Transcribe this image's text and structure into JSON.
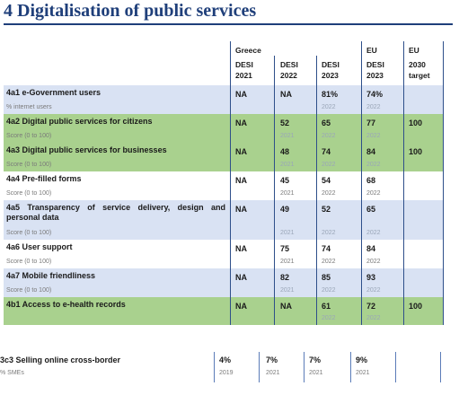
{
  "title": "4 Digitalisation of public services",
  "header": {
    "greece": "Greece",
    "eu": "EU",
    "eu_target": "EU",
    "cols": [
      {
        "l1": "DESI",
        "l2": "2021"
      },
      {
        "l1": "DESI",
        "l2": "2022"
      },
      {
        "l1": "DESI",
        "l2": "2023"
      },
      {
        "l1": "DESI",
        "l2": "2023"
      },
      {
        "l1": "2030",
        "l2": "target"
      }
    ]
  },
  "rows": [
    {
      "label": "4a1 e-Government users",
      "sub": "% internet users",
      "v2021": "NA",
      "v2022": "NA",
      "v2023": "81%",
      "eu2023": "74%",
      "target": "",
      "y2022": "",
      "y2023": "2022",
      "yeu": "2022"
    },
    {
      "label": "4a2 Digital public services for citizens",
      "sub": "Score (0 to 100)",
      "v2021": "NA",
      "v2022": "52",
      "v2023": "65",
      "eu2023": "77",
      "target": "100",
      "y2022": "2021",
      "y2023": "2022",
      "yeu": "2022"
    },
    {
      "label": "4a3 Digital public services for businesses",
      "sub": "Score (0 to 100)",
      "v2021": "NA",
      "v2022": "48",
      "v2023": "74",
      "eu2023": "84",
      "target": "100",
      "y2022": "2021",
      "y2023": "2022",
      "yeu": "2022"
    },
    {
      "label": "4a4 Pre-filled forms",
      "sub": "Score (0 to 100)",
      "v2021": "NA",
      "v2022": "45",
      "v2023": "54",
      "eu2023": "68",
      "target": "",
      "y2022": "2021",
      "y2023": "2022",
      "yeu": "2022"
    },
    {
      "label": "4a5 Transparency of service delivery, design and personal data",
      "sub": "Score (0 to 100)",
      "v2021": "NA",
      "v2022": "49",
      "v2023": "52",
      "eu2023": "65",
      "target": "",
      "y2022": "2021",
      "y2023": "2022",
      "yeu": "2022"
    },
    {
      "label": "4a6 User support",
      "sub": "Score (0 to 100)",
      "v2021": "NA",
      "v2022": "75",
      "v2023": "74",
      "eu2023": "84",
      "target": "",
      "y2022": "2021",
      "y2023": "2022",
      "yeu": "2022"
    },
    {
      "label": "4a7 Mobile friendliness",
      "sub": "Score (0 to 100)",
      "v2021": "NA",
      "v2022": "82",
      "v2023": "85",
      "eu2023": "93",
      "target": "",
      "y2022": "2021",
      "y2023": "2022",
      "yeu": "2022"
    },
    {
      "label": "4b1 Access to e-health records",
      "sub": "",
      "v2021": "NA",
      "v2022": "NA",
      "v2023": "61",
      "eu2023": "72",
      "target": "100",
      "y2022": "",
      "y2023": "2022",
      "yeu": "2022"
    }
  ],
  "bottom": {
    "label": "3c3 Selling online cross-border",
    "label_shown": "3c3 Selling online cross-border",
    "sub": "% SMEs",
    "values": [
      "4%",
      "7%",
      "7%",
      "9%"
    ],
    "years": [
      "2019",
      "2021",
      "2021",
      "2021"
    ]
  }
}
